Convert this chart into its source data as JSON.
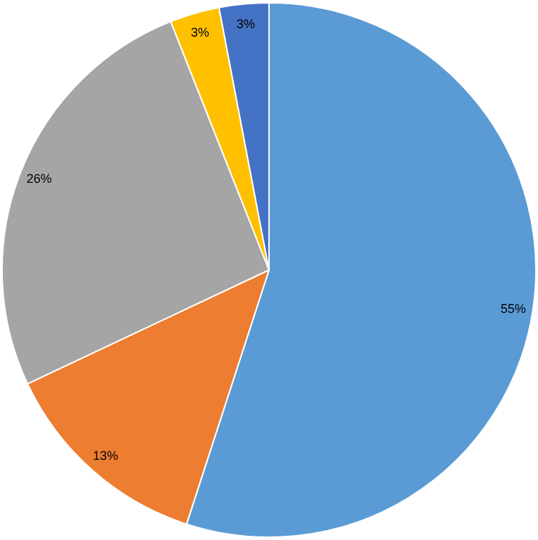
{
  "chart_data": {
    "type": "pie",
    "categories": [
      null,
      null,
      null,
      null,
      null
    ],
    "values": [
      55,
      13,
      26,
      3,
      3
    ],
    "colors": [
      "#5b9bd5",
      "#ed7d31",
      "#a5a5a5",
      "#ffc000",
      "#4472c4"
    ],
    "value_labels": [
      "55%",
      "13%",
      "26%",
      "3%",
      "3%"
    ]
  }
}
